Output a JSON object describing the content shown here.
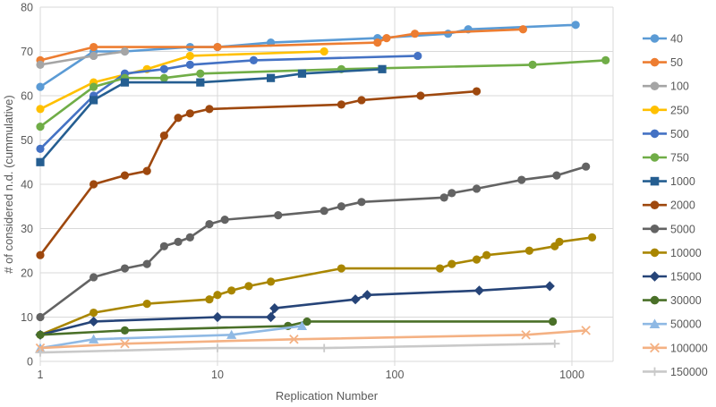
{
  "chart_data": {
    "type": "line",
    "title": "",
    "xlabel": "Replication Number",
    "ylabel": "# of considered n.d. (cummulative)",
    "x_scale": "log",
    "x_ticks": [
      1,
      10,
      100,
      1000
    ],
    "y_ticks": [
      0,
      10,
      20,
      30,
      40,
      50,
      60,
      70,
      80
    ],
    "xlim": [
      1,
      1700
    ],
    "ylim": [
      0,
      80
    ],
    "grid": true,
    "legend_position": "right",
    "colors": {
      "gridline": "#D9D9D9",
      "tick_label": "#595959",
      "axis_title": "#595959",
      "legend_label": "#595959",
      "plot_border": "#D9D9D9"
    },
    "series": [
      {
        "name": "40",
        "color": "#5B9BD5",
        "marker": "circle",
        "points": [
          [
            1,
            62
          ],
          [
            2,
            70
          ],
          [
            3,
            70
          ],
          [
            7,
            71
          ],
          [
            10,
            71
          ],
          [
            20,
            72
          ],
          [
            80,
            73
          ],
          [
            200,
            74
          ],
          [
            260,
            75
          ],
          [
            1050,
            76
          ]
        ]
      },
      {
        "name": "50",
        "color": "#ED7D31",
        "marker": "circle",
        "points": [
          [
            1,
            68
          ],
          [
            2,
            71
          ],
          [
            10,
            71
          ],
          [
            80,
            72
          ],
          [
            90,
            73
          ],
          [
            130,
            74
          ],
          [
            530,
            75
          ]
        ]
      },
      {
        "name": "100",
        "color": "#A5A5A5",
        "marker": "circle",
        "points": [
          [
            1,
            67
          ],
          [
            2,
            69
          ],
          [
            3,
            70
          ]
        ]
      },
      {
        "name": "250",
        "color": "#FFC000",
        "marker": "circle",
        "points": [
          [
            1,
            57
          ],
          [
            2,
            63
          ],
          [
            4,
            66
          ],
          [
            7,
            69
          ],
          [
            40,
            70
          ]
        ]
      },
      {
        "name": "500",
        "color": "#4472C4",
        "marker": "circle",
        "points": [
          [
            1,
            48
          ],
          [
            2,
            60
          ],
          [
            3,
            65
          ],
          [
            5,
            66
          ],
          [
            7,
            67
          ],
          [
            16,
            68
          ],
          [
            135,
            69
          ]
        ]
      },
      {
        "name": "750",
        "color": "#70AD47",
        "marker": "circle",
        "points": [
          [
            1,
            53
          ],
          [
            2,
            62
          ],
          [
            3,
            64
          ],
          [
            5,
            64
          ],
          [
            8,
            65
          ],
          [
            50,
            66
          ],
          [
            600,
            67
          ],
          [
            1550,
            68
          ]
        ]
      },
      {
        "name": "1000",
        "color": "#255E91",
        "marker": "square",
        "points": [
          [
            1,
            45
          ],
          [
            2,
            59
          ],
          [
            3,
            63
          ],
          [
            8,
            63
          ],
          [
            20,
            64
          ],
          [
            30,
            65
          ],
          [
            85,
            66
          ]
        ]
      },
      {
        "name": "2000",
        "color": "#9E480E",
        "marker": "circle",
        "points": [
          [
            1,
            24
          ],
          [
            2,
            40
          ],
          [
            3,
            42
          ],
          [
            4,
            43
          ],
          [
            5,
            51
          ],
          [
            6,
            55
          ],
          [
            7,
            56
          ],
          [
            9,
            57
          ],
          [
            50,
            58
          ],
          [
            65,
            59
          ],
          [
            140,
            60
          ],
          [
            290,
            61
          ]
        ]
      },
      {
        "name": "5000",
        "color": "#636363",
        "marker": "circle",
        "points": [
          [
            1,
            10
          ],
          [
            2,
            19
          ],
          [
            3,
            21
          ],
          [
            4,
            22
          ],
          [
            5,
            26
          ],
          [
            6,
            27
          ],
          [
            7,
            28
          ],
          [
            9,
            31
          ],
          [
            11,
            32
          ],
          [
            22,
            33
          ],
          [
            40,
            34
          ],
          [
            50,
            35
          ],
          [
            65,
            36
          ],
          [
            190,
            37
          ],
          [
            210,
            38
          ],
          [
            290,
            39
          ],
          [
            520,
            41
          ],
          [
            820,
            42
          ],
          [
            1200,
            44
          ]
        ]
      },
      {
        "name": "10000",
        "color": "#A98600",
        "marker": "circle",
        "points": [
          [
            1,
            6
          ],
          [
            2,
            11
          ],
          [
            4,
            13
          ],
          [
            9,
            14
          ],
          [
            10,
            15
          ],
          [
            12,
            16
          ],
          [
            15,
            17
          ],
          [
            20,
            18
          ],
          [
            50,
            21
          ],
          [
            180,
            21
          ],
          [
            210,
            22
          ],
          [
            290,
            23
          ],
          [
            330,
            24
          ],
          [
            575,
            25
          ],
          [
            800,
            26
          ],
          [
            850,
            27
          ],
          [
            1300,
            28
          ]
        ]
      },
      {
        "name": "15000",
        "color": "#264478",
        "marker": "diamond",
        "points": [
          [
            1,
            6
          ],
          [
            2,
            9
          ],
          [
            10,
            10
          ],
          [
            20,
            10
          ],
          [
            21,
            12
          ],
          [
            60,
            14
          ],
          [
            70,
            15
          ],
          [
            300,
            16
          ],
          [
            750,
            17
          ]
        ]
      },
      {
        "name": "30000",
        "color": "#4A7028",
        "marker": "circle",
        "points": [
          [
            1,
            6
          ],
          [
            3,
            7
          ],
          [
            25,
            8
          ],
          [
            32,
            9
          ],
          [
            780,
            9
          ]
        ]
      },
      {
        "name": "50000",
        "color": "#8FB9E4",
        "marker": "triangle",
        "points": [
          [
            1,
            3
          ],
          [
            2,
            5
          ],
          [
            12,
            6
          ],
          [
            30,
            8
          ]
        ]
      },
      {
        "name": "100000",
        "color": "#F4B183",
        "marker": "x",
        "points": [
          [
            1,
            3
          ],
          [
            3,
            4
          ],
          [
            27,
            5
          ],
          [
            550,
            6
          ],
          [
            1200,
            7
          ]
        ]
      },
      {
        "name": "150000",
        "color": "#C9C9C9",
        "marker": "plus",
        "points": [
          [
            1,
            2
          ],
          [
            10,
            3
          ],
          [
            40,
            3
          ],
          [
            800,
            4
          ]
        ]
      }
    ]
  }
}
